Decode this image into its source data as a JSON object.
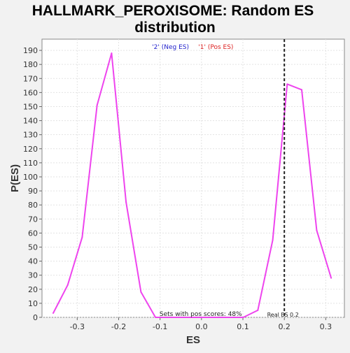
{
  "chart_data": {
    "type": "line",
    "title_line1": "HALLMARK_PEROXISOME: Random ES",
    "title_line2": "distribution",
    "xlabel": "ES",
    "ylabel": "P(ES)",
    "xlim": [
      -0.385,
      0.345
    ],
    "ylim": [
      0,
      198
    ],
    "x_ticks": [
      -0.3,
      -0.2,
      -0.1,
      0.0,
      0.1,
      0.2,
      0.3
    ],
    "x_tick_labels": [
      "-0.3",
      "-0.2",
      "-0.1",
      "0.0",
      "0.1",
      "0.2",
      "0.3"
    ],
    "y_ticks": [
      0,
      10,
      20,
      30,
      40,
      50,
      60,
      70,
      80,
      90,
      100,
      110,
      120,
      130,
      140,
      150,
      160,
      170,
      180,
      190
    ],
    "y_tick_labels": [
      "0",
      "10",
      "20",
      "30",
      "40",
      "50",
      "60",
      "70",
      "80",
      "90",
      "100",
      "110",
      "120",
      "130",
      "140",
      "150",
      "160",
      "170",
      "180",
      "190"
    ],
    "grid": true,
    "series": [
      {
        "color": "#ee44ee",
        "x": [
          -0.358,
          -0.323,
          -0.288,
          -0.252,
          -0.217,
          -0.182,
          -0.146,
          -0.111,
          -0.076,
          -0.04,
          -0.005,
          0.03,
          0.066,
          0.101,
          0.136,
          0.172,
          0.207,
          0.242,
          0.278,
          0.313
        ],
        "y": [
          3,
          23,
          57,
          151,
          188,
          82,
          18,
          0,
          0,
          0,
          0,
          0,
          0,
          0,
          5,
          55,
          166,
          162,
          62,
          28
        ]
      }
    ],
    "legend": [
      {
        "label": "'2' (Neg ES)",
        "color": "#2222cc"
      },
      {
        "label": "'1' (Pos ES)",
        "color": "#dd2222"
      }
    ],
    "legend_placement": "top-center",
    "real_es": {
      "x": 0.2,
      "label": "Real ES 0.2"
    },
    "annotation": "Sets with pos scores: 48%"
  }
}
